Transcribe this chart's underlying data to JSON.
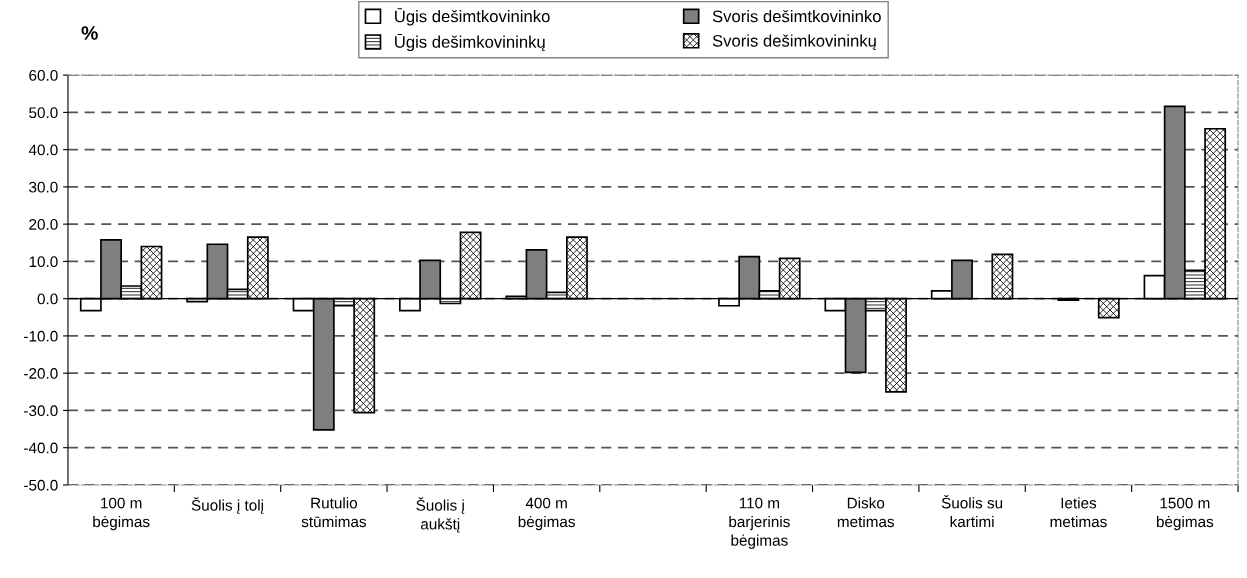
{
  "chart_data": {
    "type": "bar",
    "ylabel": "%",
    "categories": [
      "100 m bėgimas",
      "Šuolis į tolį",
      "Rutulio stūmimas",
      "Šuolis į aukštį",
      "400 m bėgimas",
      null,
      "110 m barjerinis bėgimas",
      "Disko metimas",
      "Šuolis su kartimi",
      "Ieties metimas",
      "1500 m bėgimas"
    ],
    "series": [
      {
        "name": "Ūgis dešimtkovininko",
        "color": "#ffffff",
        "values": [
          -3.2,
          -0.8,
          -3.2,
          -3.2,
          0.6,
          null,
          -1.9,
          -3.2,
          2.1,
          null,
          6.2
        ]
      },
      {
        "name": "Svoris dešimtkovininko",
        "color": "#7f7f7f",
        "values": [
          15.8,
          14.6,
          -35.2,
          10.3,
          13.1,
          null,
          11.3,
          -19.8,
          10.3,
          -0.4,
          51.6
        ]
      },
      {
        "name": "Ūgis dešimkovininkų",
        "color": "#000000",
        "values": [
          3.4,
          2.5,
          -1.9,
          -1.3,
          1.7,
          null,
          2.1,
          -3.2,
          null,
          null,
          7.6
        ]
      },
      {
        "name": "Svoris dešimkovininkų",
        "color": "#000000",
        "values": [
          14.0,
          16.5,
          -30.6,
          17.8,
          16.5,
          null,
          10.8,
          -25.0,
          11.9,
          -5.1,
          45.6
        ]
      }
    ],
    "ylim": [
      -50,
      60
    ],
    "yticks": [
      {
        "value": -50,
        "label": "-50.0"
      },
      {
        "value": -40,
        "label": "-40.0"
      },
      {
        "value": -30,
        "label": "-30.0"
      },
      {
        "value": -20,
        "label": "-20.0"
      },
      {
        "value": -10,
        "label": "-10.0"
      },
      {
        "value": 0,
        "label": "0.0"
      },
      {
        "value": 10,
        "label": "10.0"
      },
      {
        "value": 20,
        "label": "20.0"
      },
      {
        "value": 30,
        "label": "30.0"
      },
      {
        "value": 40,
        "label": "40.0"
      },
      {
        "value": 50,
        "label": "50.0"
      },
      {
        "value": 60,
        "label": "60.0"
      }
    ],
    "grid": "y",
    "legend": "top"
  }
}
